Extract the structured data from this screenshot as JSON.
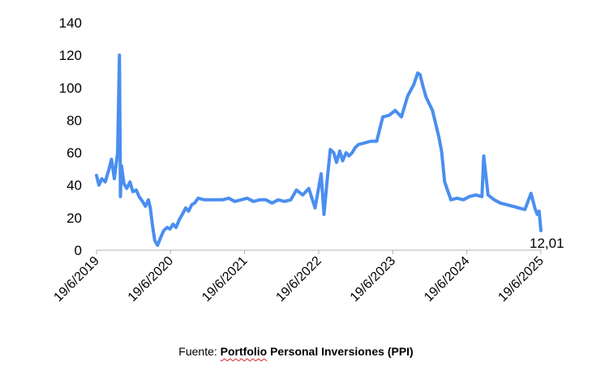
{
  "chart_data": {
    "type": "line",
    "title": "",
    "xlabel": "",
    "ylabel": "",
    "ylim": [
      0,
      140
    ],
    "yticks": [
      "0",
      "20",
      "40",
      "60",
      "80",
      "100",
      "120",
      "140"
    ],
    "xticks": [
      "19/6/2019",
      "19/6/2020",
      "19/6/2021",
      "19/6/2022",
      "19/6/2023",
      "19/6/2024",
      "19/6/2025"
    ],
    "grid": false,
    "line_color": "#4a8ef0",
    "end_label": "12,01",
    "series": [
      {
        "x": [
          "2019-06-19",
          "2019-07-01",
          "2019-07-15",
          "2019-08-01",
          "2019-08-20",
          "2019-09-01",
          "2019-09-15",
          "2019-10-01",
          "2019-10-10",
          "2019-10-15",
          "2019-10-20",
          "2019-11-01",
          "2019-11-15",
          "2019-12-01",
          "2019-12-15",
          "2020-01-01",
          "2020-01-15",
          "2020-02-01",
          "2020-02-15",
          "2020-03-01",
          "2020-03-10",
          "2020-03-20",
          "2020-04-01",
          "2020-04-15",
          "2020-05-01",
          "2020-05-15",
          "2020-06-01",
          "2020-06-15",
          "2020-07-01",
          "2020-07-15",
          "2020-08-01",
          "2020-08-15",
          "2020-09-01",
          "2020-09-15",
          "2020-10-01",
          "2020-10-15",
          "2020-11-01",
          "2020-12-01",
          "2021-01-01",
          "2021-02-01",
          "2021-03-01",
          "2021-04-01",
          "2021-05-01",
          "2021-06-01",
          "2021-07-01",
          "2021-08-01",
          "2021-09-01",
          "2021-10-01",
          "2021-11-01",
          "2021-12-01",
          "2022-01-01",
          "2022-02-01",
          "2022-03-01",
          "2022-04-01",
          "2022-05-01",
          "2022-06-01",
          "2022-07-01",
          "2022-07-15",
          "2022-08-01",
          "2022-08-15",
          "2022-09-01",
          "2022-09-15",
          "2022-10-01",
          "2022-10-15",
          "2022-11-01",
          "2022-11-15",
          "2022-12-01",
          "2022-12-15",
          "2023-01-01",
          "2023-02-01",
          "2023-03-01",
          "2023-04-01",
          "2023-05-01",
          "2023-06-01",
          "2023-07-01",
          "2023-08-01",
          "2023-09-01",
          "2023-10-01",
          "2023-10-20",
          "2023-11-01",
          "2023-11-15",
          "2023-12-01",
          "2024-01-01",
          "2024-02-01",
          "2024-02-15",
          "2024-03-01",
          "2024-03-15",
          "2024-04-01",
          "2024-05-01",
          "2024-06-01",
          "2024-07-01",
          "2024-08-01",
          "2024-09-01",
          "2024-09-10",
          "2024-10-01",
          "2024-11-01",
          "2024-12-01",
          "2025-01-01",
          "2025-02-01",
          "2025-03-01",
          "2025-04-01",
          "2025-05-01",
          "2025-05-20",
          "2025-06-01",
          "2025-06-10",
          "2025-06-19"
        ],
        "y": [
          46,
          40,
          44,
          42,
          50,
          56,
          44,
          60,
          120,
          33,
          52,
          41,
          38,
          42,
          36,
          37,
          33,
          30,
          27,
          31,
          26,
          16,
          6,
          3,
          8,
          12,
          14,
          13,
          16,
          14,
          19,
          22,
          26,
          24,
          28,
          29,
          32,
          31,
          31,
          31,
          31,
          32,
          30,
          31,
          32,
          30,
          31,
          31,
          29,
          31,
          30,
          31,
          37,
          34,
          38,
          26,
          47,
          22,
          45,
          62,
          60,
          54,
          61,
          55,
          60,
          58,
          60,
          63,
          65,
          66,
          67,
          67,
          82,
          83,
          86,
          82,
          95,
          102,
          109,
          108,
          101,
          94,
          86,
          70,
          61,
          42,
          37,
          31,
          32,
          31,
          33,
          34,
          33,
          58,
          34,
          31,
          29,
          28,
          27,
          26,
          25,
          35,
          26,
          22,
          24,
          12.01
        ]
      }
    ]
  },
  "source": {
    "prefix": "Fuente: ",
    "name_part1": "Portfolio",
    "name_part2": " Personal Inversiones (PPI)"
  }
}
